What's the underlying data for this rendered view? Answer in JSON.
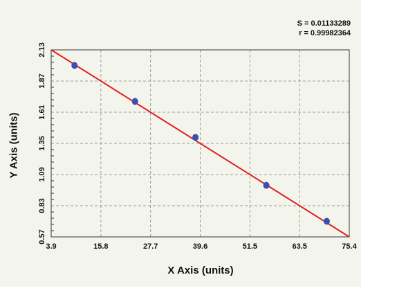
{
  "chart_data": {
    "type": "scatter",
    "xlabel": "X Axis (units)",
    "ylabel": "Y Axis (units)",
    "xlim": [
      3.9,
      75.4
    ],
    "ylim": [
      0.57,
      2.13
    ],
    "x_ticks": [
      "3.9",
      "15.8",
      "27.7",
      "39.6",
      "51.5",
      "63.5",
      "75.4"
    ],
    "y_ticks": [
      "2.13",
      "1.87",
      "1.61",
      "1.35",
      "1.09",
      "0.83",
      "0.57"
    ],
    "grid": true,
    "points": [
      {
        "x": 9.5,
        "y": 2.0
      },
      {
        "x": 24.0,
        "y": 1.7
      },
      {
        "x": 38.5,
        "y": 1.4
      },
      {
        "x": 55.5,
        "y": 1.0
      },
      {
        "x": 70.0,
        "y": 0.7
      }
    ],
    "fit_line": {
      "x": [
        3.9,
        75.4
      ],
      "y": [
        2.13,
        0.57
      ],
      "color": "#e0201e"
    },
    "point_color": "#3b4fb0",
    "stats": {
      "s": "S = 0.01133289",
      "r": "r = 0.99982364"
    }
  }
}
